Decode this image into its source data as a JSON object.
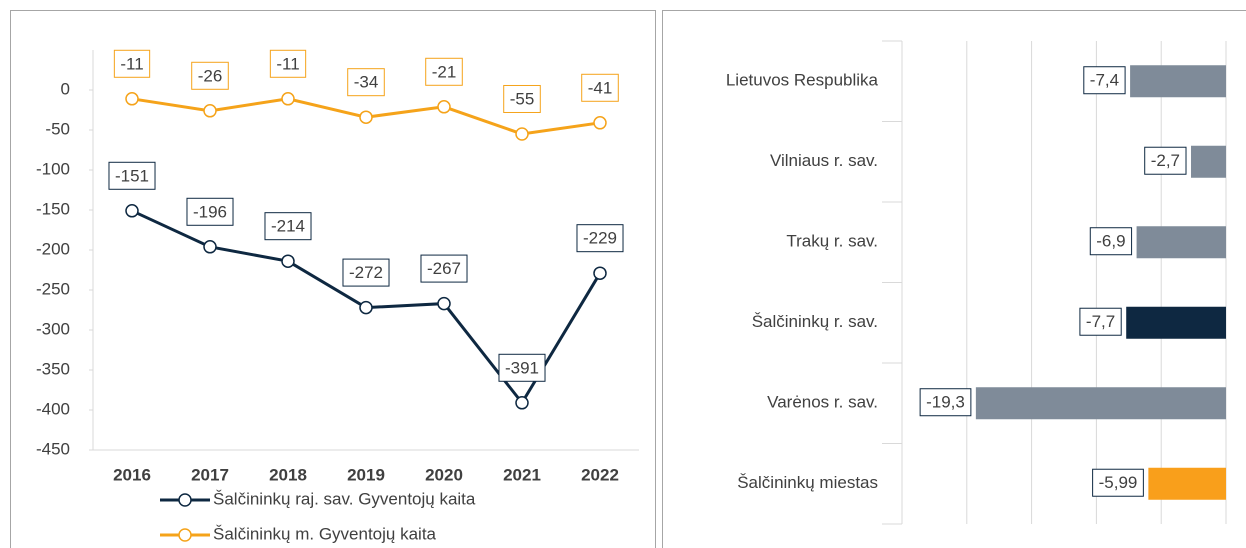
{
  "chart_data": [
    {
      "type": "line",
      "categories": [
        "2016",
        "2017",
        "2018",
        "2019",
        "2020",
        "2021",
        "2022"
      ],
      "series": [
        {
          "name": "Šalčininkų raj. sav. Gyventojų kaita",
          "color": "#0e2841",
          "values": [
            -151,
            -196,
            -214,
            -272,
            -267,
            -391,
            -229
          ]
        },
        {
          "name": "Šalčininkų m. Gyventojų kaita",
          "color": "#f5a31a",
          "values": [
            -11,
            -26,
            -11,
            -34,
            -21,
            -55,
            -41
          ]
        }
      ],
      "ylim": [
        -450,
        50
      ],
      "yticks": [
        0,
        -50,
        -100,
        -150,
        -200,
        -250,
        -300,
        -350,
        -400,
        -450
      ],
      "legend": "bottom"
    },
    {
      "type": "barh",
      "categories": [
        "Lietuvos Respublika",
        "Vilniaus r. sav.",
        "Trakų r. sav.",
        "Šalčininkų r. sav.",
        "Varėnos r. sav.",
        "Šalčininkų miestas"
      ],
      "values": [
        -7.4,
        -2.7,
        -6.9,
        -7.7,
        -19.3,
        -5.99
      ],
      "value_labels": [
        "-7,4",
        "-2,7",
        "-6,9",
        "-7,7",
        "-19,3",
        "-5,99"
      ],
      "colors": [
        "#7f8b99",
        "#7f8b99",
        "#7f8b99",
        "#0e2841",
        "#7f8b99",
        "#f99f1b"
      ],
      "xlim": [
        -25,
        0
      ],
      "xticks": [
        -25,
        -20,
        -15,
        -10,
        -5,
        0
      ],
      "grid": true
    }
  ]
}
